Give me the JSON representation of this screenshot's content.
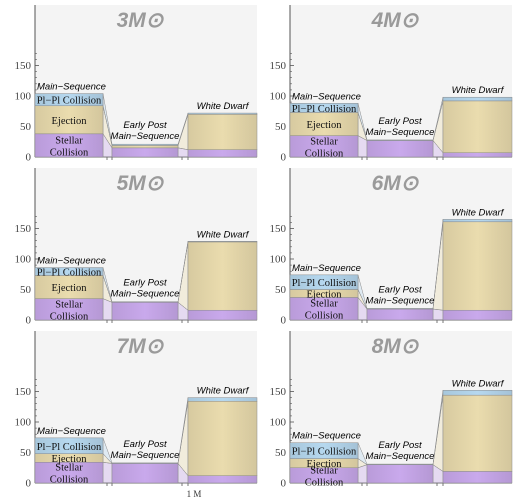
{
  "footer_note": "1 M",
  "stage_labels": {
    "main": "Main−Sequence",
    "early_line1": "Early Post",
    "early_line2": "Main−Sequence",
    "white_dwarf": "White Dwarf"
  },
  "segment_labels": {
    "pp": "Pl−Pl Collision",
    "ejection": "Ejection",
    "stellar_line1": "Stellar",
    "stellar_line2": "Collision"
  },
  "colors": {
    "stellar": "#c9a9ec",
    "ejection": "#eadcae",
    "pp": "#b6d8ef",
    "panel_bg": "#f4f4f4",
    "axis": "#555555",
    "title": "#9a9a9a"
  },
  "chart_data": [
    {
      "type": "bar",
      "stacked": true,
      "title": "3M⊙",
      "categories": [
        "Main−Sequence",
        "Early Post Main−Sequence",
        "White Dwarf"
      ],
      "series": [
        {
          "name": "Stellar Collision",
          "values": [
            38,
            15,
            12
          ]
        },
        {
          "name": "Ejection",
          "values": [
            46,
            4,
            58
          ]
        },
        {
          "name": "Pl−Pl Collision",
          "values": [
            20,
            2,
            2
          ]
        }
      ],
      "ylim": [
        0,
        175
      ],
      "yticks": [
        0,
        50,
        100,
        150
      ]
    },
    {
      "type": "bar",
      "stacked": true,
      "title": "4M⊙",
      "categories": [
        "Main−Sequence",
        "Early Post Main−Sequence",
        "White Dwarf"
      ],
      "series": [
        {
          "name": "Stellar Collision",
          "values": [
            35,
            27,
            7
          ]
        },
        {
          "name": "Ejection",
          "values": [
            38,
            0,
            85
          ]
        },
        {
          "name": "Pl−Pl Collision",
          "values": [
            15,
            1,
            6
          ]
        }
      ],
      "ylim": [
        0,
        175
      ],
      "yticks": [
        0,
        50,
        100,
        150
      ]
    },
    {
      "type": "bar",
      "stacked": true,
      "title": "5M⊙",
      "categories": [
        "Main−Sequence",
        "Early Post Main−Sequence",
        "White Dwarf"
      ],
      "series": [
        {
          "name": "Stellar Collision",
          "values": [
            35,
            29,
            16
          ]
        },
        {
          "name": "Ejection",
          "values": [
            38,
            0,
            112
          ]
        },
        {
          "name": "Pl−Pl Collision",
          "values": [
            13,
            1,
            1
          ]
        }
      ],
      "ylim": [
        0,
        175
      ],
      "yticks": [
        0,
        50,
        100,
        150
      ]
    },
    {
      "type": "bar",
      "stacked": true,
      "title": "6M⊙",
      "categories": [
        "Main−Sequence",
        "Early Post Main−Sequence",
        "White Dwarf"
      ],
      "series": [
        {
          "name": "Stellar Collision",
          "values": [
            37,
            18,
            16
          ]
        },
        {
          "name": "Ejection",
          "values": [
            13,
            0,
            145
          ]
        },
        {
          "name": "Pl−Pl Collision",
          "values": [
            24,
            1,
            4
          ]
        }
      ],
      "ylim": [
        0,
        175
      ],
      "yticks": [
        0,
        50,
        100,
        150
      ]
    },
    {
      "type": "bar",
      "stacked": true,
      "title": "7M⊙",
      "categories": [
        "Main−Sequence",
        "Early Post Main−Sequence",
        "White Dwarf"
      ],
      "series": [
        {
          "name": "Stellar Collision",
          "values": [
            34,
            32,
            12
          ]
        },
        {
          "name": "Ejection",
          "values": [
            14,
            0,
            122
          ]
        },
        {
          "name": "Pl−Pl Collision",
          "values": [
            26,
            1,
            6
          ]
        }
      ],
      "ylim": [
        0,
        175
      ],
      "yticks": [
        0,
        50,
        100,
        150
      ]
    },
    {
      "type": "bar",
      "stacked": true,
      "title": "8M⊙",
      "categories": [
        "Main−Sequence",
        "Early Post Main−Sequence",
        "White Dwarf"
      ],
      "series": [
        {
          "name": "Stellar Collision",
          "values": [
            25,
            30,
            19
          ]
        },
        {
          "name": "Ejection",
          "values": [
            15,
            0,
            125
          ]
        },
        {
          "name": "Pl−Pl Collision",
          "values": [
            26,
            1,
            8
          ]
        }
      ],
      "ylim": [
        0,
        175
      ],
      "yticks": [
        0,
        50,
        100,
        150
      ]
    }
  ]
}
